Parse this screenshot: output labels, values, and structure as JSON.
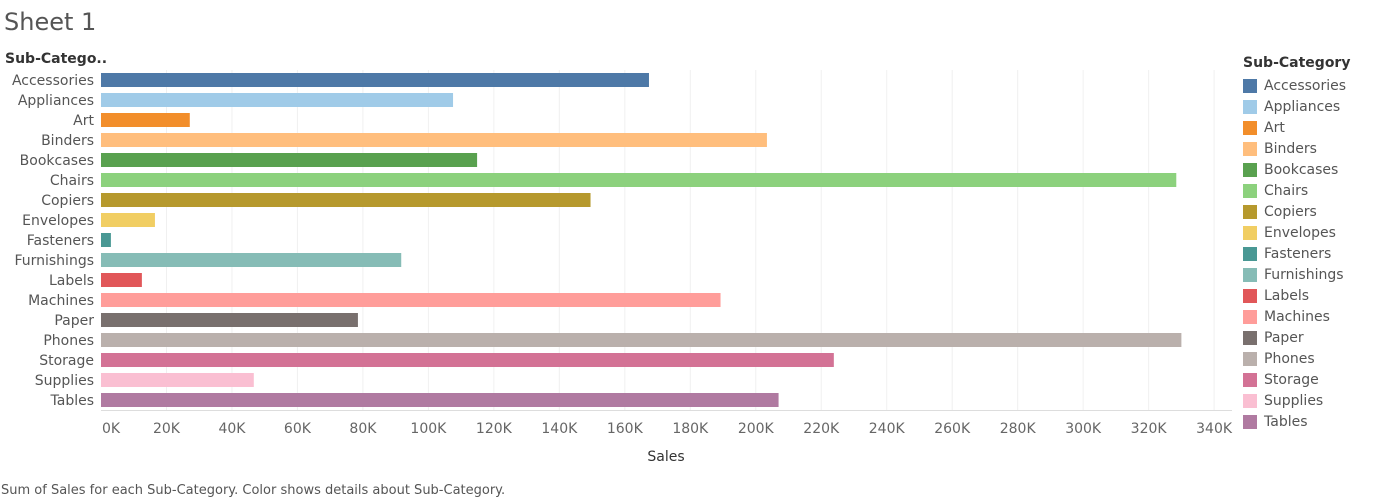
{
  "sheet_title": "Sheet 1",
  "caption": "Sum of Sales for each Sub-Category.  Color shows details about Sub-Category.",
  "chart_data": {
    "type": "bar",
    "orientation": "horizontal",
    "row_header": "Sub-Catego..",
    "xlabel": "Sales",
    "xlim": [
      0,
      340000
    ],
    "x_ticks": [
      "0K",
      "20K",
      "40K",
      "60K",
      "80K",
      "100K",
      "120K",
      "140K",
      "160K",
      "180K",
      "200K",
      "220K",
      "240K",
      "260K",
      "280K",
      "300K",
      "320K",
      "340K"
    ],
    "grid": true,
    "legend_title": "Sub-Category",
    "legend_placement": "right",
    "categories": [
      "Accessories",
      "Appliances",
      "Art",
      "Binders",
      "Bookcases",
      "Chairs",
      "Copiers",
      "Envelopes",
      "Fasteners",
      "Furnishings",
      "Labels",
      "Machines",
      "Paper",
      "Phones",
      "Storage",
      "Supplies",
      "Tables"
    ],
    "values": [
      167380,
      107532,
      27119,
      203413,
      114880,
      328449,
      149528,
      16476,
      3024,
      91705,
      12486,
      189239,
      78479,
      330007,
      223844,
      46674,
      206966
    ],
    "colors": [
      "#4e79a7",
      "#a0cbe8",
      "#f28e2b",
      "#ffbe7d",
      "#59a14f",
      "#8cd17d",
      "#b6992d",
      "#f1ce63",
      "#499894",
      "#86bcb6",
      "#e15759",
      "#ff9d9a",
      "#79706e",
      "#bab0ac",
      "#d37295",
      "#fabfd2",
      "#b07aa1"
    ]
  }
}
